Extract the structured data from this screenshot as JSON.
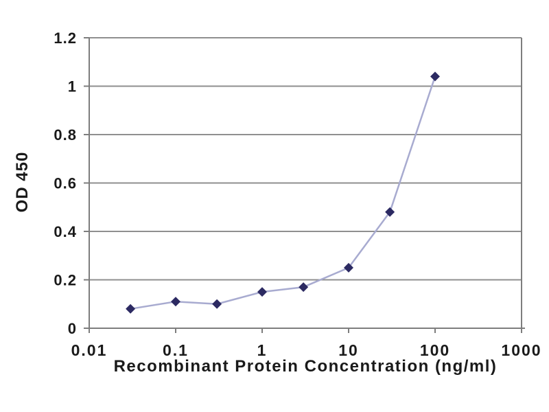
{
  "chart_data": {
    "type": "line",
    "x": [
      0.03,
      0.1,
      0.3,
      1,
      3,
      10,
      30,
      100
    ],
    "y": [
      0.08,
      0.11,
      0.1,
      0.15,
      0.17,
      0.25,
      0.48,
      1.04
    ],
    "title": "",
    "xlabel": "Recombinant Protein Concentration (ng/ml)",
    "ylabel": "OD 450",
    "x_scale": "log",
    "xlim": [
      0.01,
      1000
    ],
    "ylim": [
      0,
      1.2
    ],
    "x_tick_labels": [
      "0.01",
      "0.1",
      "1",
      "10",
      "100",
      "1000"
    ],
    "x_tick_values": [
      0.01,
      0.1,
      1,
      10,
      100,
      1000
    ],
    "y_tick_labels": [
      "0",
      "0.2",
      "0.4",
      "0.6",
      "0.8",
      "1",
      "1.2"
    ],
    "y_tick_values": [
      0,
      0.2,
      0.4,
      0.6,
      0.8,
      1.0,
      1.2
    ],
    "grid": "horizontal",
    "legend": "none",
    "marker_shape": "diamond",
    "colors": {
      "line": "#a8abd0",
      "marker": "#2c2a62",
      "grid": "#8f8f8f",
      "axis": "#7d7d7d",
      "text": "#1a1a1a",
      "background": "#ffffff"
    }
  }
}
